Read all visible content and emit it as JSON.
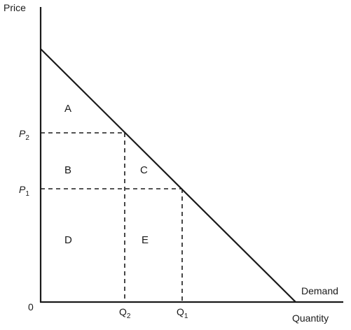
{
  "diagram": {
    "axes": {
      "y_label": "Price",
      "x_label": "Quantity",
      "origin_label": "0"
    },
    "curve_label": "Demand",
    "price_levels": [
      {
        "base": "P",
        "sub": "2"
      },
      {
        "base": "P",
        "sub": "1"
      }
    ],
    "quantity_levels": [
      {
        "base": "Q",
        "sub": "2"
      },
      {
        "base": "Q",
        "sub": "1"
      }
    ],
    "regions": [
      "A",
      "B",
      "C",
      "D",
      "E"
    ],
    "colors": {
      "line": "#1a1a1a",
      "text": "#1a1a1a",
      "background": "#ffffff"
    }
  }
}
